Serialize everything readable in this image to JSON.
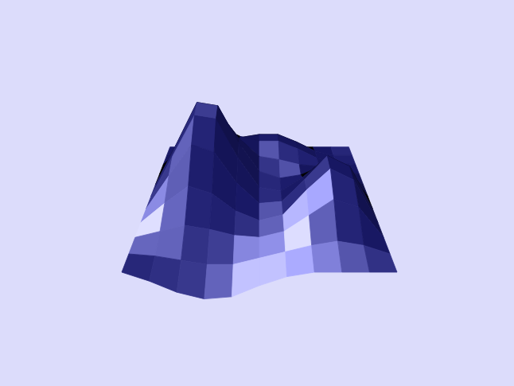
{
  "chart_data": {
    "type": "surface",
    "xlim": [
      -1,
      1
    ],
    "ylim": [
      0,
      1
    ],
    "color": "#1c1c78",
    "tick_labels": false,
    "z": [
      [
        0,
        -0.08,
        -0.18,
        -0.24,
        -0.22,
        -0.12,
        -0.04,
        0,
        0,
        0,
        0
      ],
      [
        0,
        -0.02,
        -0.06,
        -0.1,
        -0.1,
        -0.04,
        0.02,
        0.08,
        0.12,
        0.08,
        0
      ],
      [
        0,
        0.06,
        0.12,
        0.08,
        0.02,
        0,
        0.06,
        0.22,
        0.38,
        0.3,
        0
      ],
      [
        0,
        0.2,
        0.38,
        0.3,
        0.12,
        0.02,
        0.08,
        0.34,
        0.56,
        0.44,
        0
      ],
      [
        0,
        0.36,
        0.7,
        0.62,
        0.28,
        0.06,
        0.08,
        0.32,
        0.58,
        0.46,
        0
      ],
      [
        0,
        0.46,
        0.92,
        0.88,
        0.44,
        0.1,
        0.06,
        0.22,
        0.42,
        0.32,
        0
      ],
      [
        0,
        0.48,
        0.98,
        0.94,
        0.5,
        0.16,
        0.08,
        0.12,
        0.22,
        0.16,
        0
      ],
      [
        0,
        0.38,
        0.78,
        0.76,
        0.44,
        0.22,
        0.18,
        0.12,
        0.1,
        0.06,
        0
      ],
      [
        0,
        0.22,
        0.46,
        0.48,
        0.36,
        0.3,
        0.3,
        0.2,
        0.08,
        0.02,
        0
      ],
      [
        0,
        0.08,
        0.18,
        0.22,
        0.24,
        0.28,
        0.28,
        0.18,
        0.06,
        0,
        0
      ],
      [
        0,
        0,
        0,
        0,
        0,
        0,
        0,
        0,
        0,
        0,
        0
      ]
    ]
  }
}
